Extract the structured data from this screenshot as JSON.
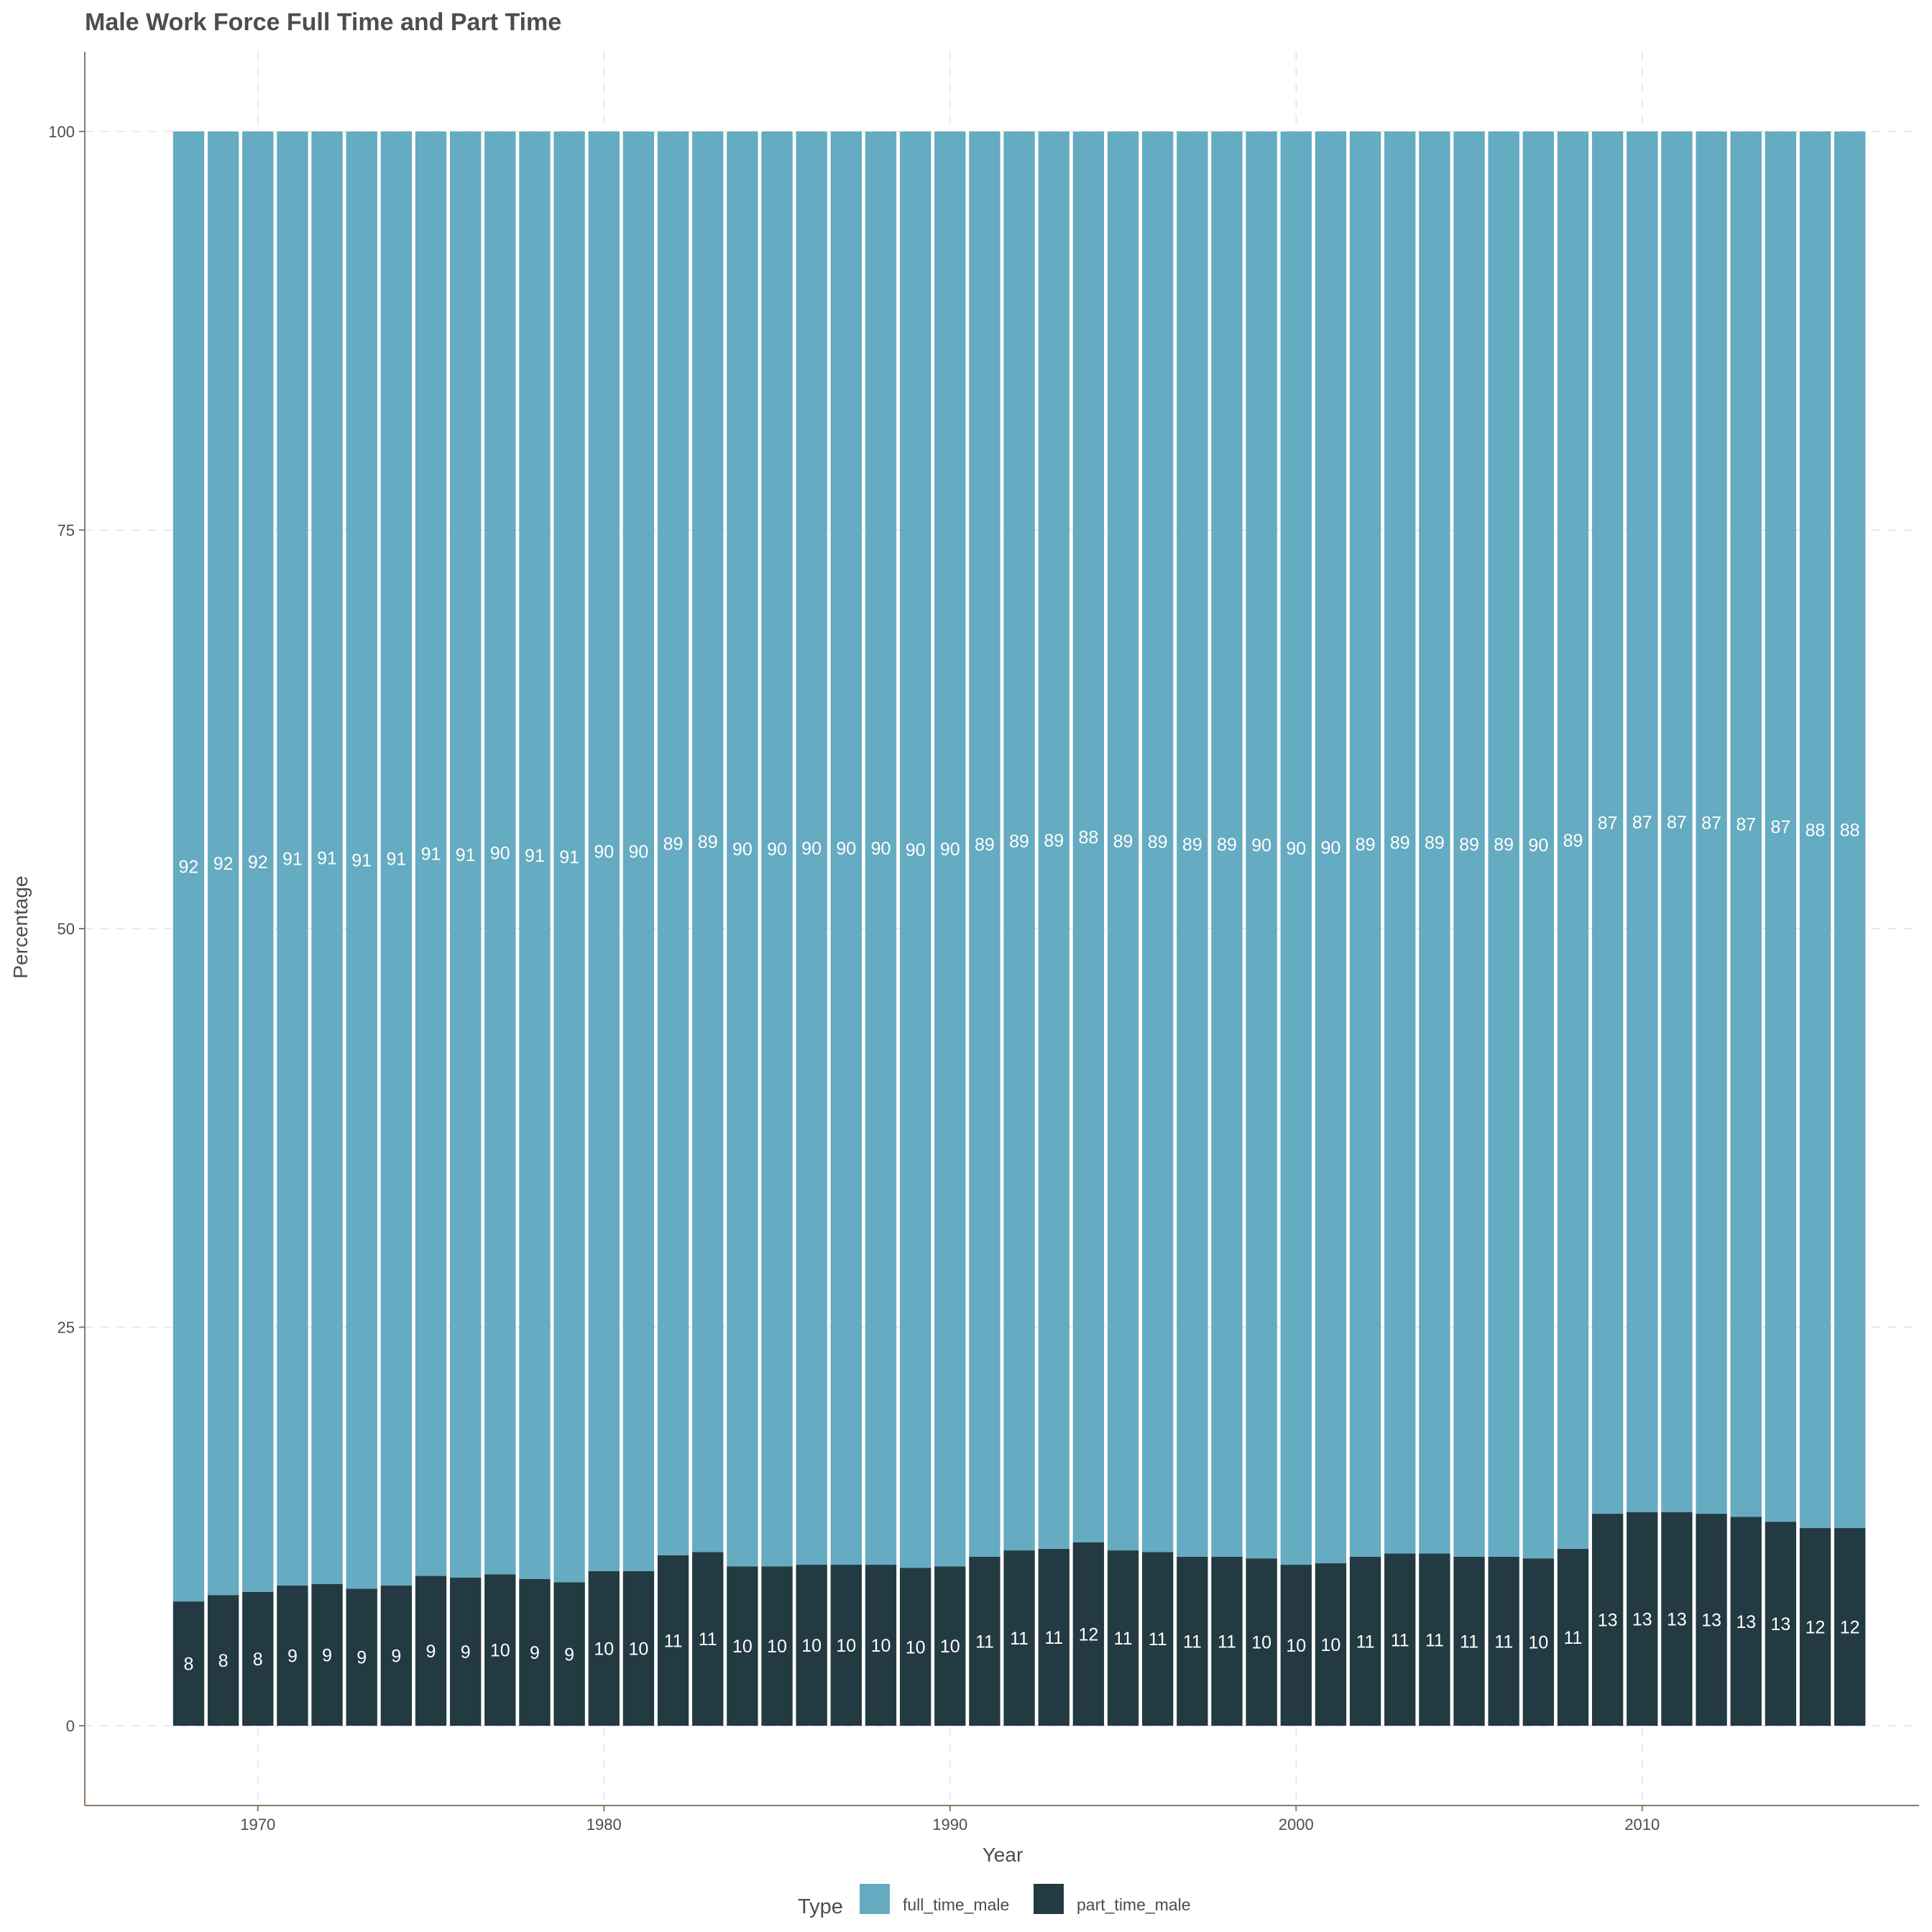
{
  "chart_data": {
    "type": "bar",
    "stacked": true,
    "title": "Male Work Force Full Time and Part Time",
    "xlabel": "Year",
    "ylabel": "Percentage",
    "x": [
      1968,
      1969,
      1970,
      1971,
      1972,
      1973,
      1974,
      1975,
      1976,
      1977,
      1978,
      1979,
      1980,
      1981,
      1982,
      1983,
      1984,
      1985,
      1986,
      1987,
      1988,
      1989,
      1990,
      1991,
      1992,
      1993,
      1994,
      1995,
      1996,
      1997,
      1998,
      1999,
      2000,
      2001,
      2002,
      2003,
      2004,
      2005,
      2006,
      2007,
      2008,
      2009,
      2010,
      2011,
      2012,
      2013,
      2014,
      2015,
      2016
    ],
    "xlim": [
      1965,
      2018
    ],
    "ylim": [
      -5,
      105
    ],
    "x_ticks": [
      1970,
      1980,
      1990,
      2000,
      2010
    ],
    "y_ticks": [
      0,
      25,
      50,
      75,
      100
    ],
    "grid": true,
    "legend": {
      "title": "Type",
      "position": "bottom"
    },
    "series": [
      {
        "name": "full_time_male",
        "color": "#65abc1",
        "values": [
          92.2,
          91.8,
          91.6,
          91.2,
          91.1,
          91.4,
          91.2,
          90.6,
          90.7,
          90.5,
          90.8,
          91.0,
          90.3,
          90.3,
          89.3,
          89.1,
          90.0,
          90.0,
          89.9,
          89.9,
          89.9,
          90.1,
          90.0,
          89.4,
          89.0,
          88.9,
          88.5,
          89.0,
          89.1,
          89.4,
          89.4,
          89.5,
          89.9,
          89.8,
          89.4,
          89.2,
          89.2,
          89.4,
          89.4,
          89.5,
          88.9,
          86.7,
          86.6,
          86.6,
          86.7,
          86.9,
          87.2,
          87.6,
          87.6
        ],
        "labels": [
          "92",
          "92",
          "92",
          "91",
          "91",
          "91",
          "91",
          "91",
          "91",
          "90",
          "91",
          "91",
          "90",
          "90",
          "89",
          "89",
          "90",
          "90",
          "90",
          "90",
          "90",
          "90",
          "90",
          "89",
          "89",
          "89",
          "88",
          "89",
          "89",
          "89",
          "89",
          "90",
          "90",
          "90",
          "89",
          "89",
          "89",
          "89",
          "89",
          "90",
          "89",
          "87",
          "87",
          "87",
          "87",
          "87",
          "87",
          "88",
          "88"
        ]
      },
      {
        "name": "part_time_male",
        "color": "#233a43",
        "values": [
          7.8,
          8.2,
          8.4,
          8.8,
          8.9,
          8.6,
          8.8,
          9.4,
          9.3,
          9.5,
          9.2,
          9.0,
          9.7,
          9.7,
          10.7,
          10.9,
          10.0,
          10.0,
          10.1,
          10.1,
          10.1,
          9.9,
          10.0,
          10.6,
          11.0,
          11.1,
          11.5,
          11.0,
          10.9,
          10.6,
          10.6,
          10.5,
          10.1,
          10.2,
          10.6,
          10.8,
          10.8,
          10.6,
          10.6,
          10.5,
          11.1,
          13.3,
          13.4,
          13.4,
          13.3,
          13.1,
          12.8,
          12.4,
          12.4
        ],
        "labels": [
          "8",
          "8",
          "8",
          "9",
          "9",
          "9",
          "9",
          "9",
          "9",
          "10",
          "9",
          "9",
          "10",
          "10",
          "11",
          "11",
          "10",
          "10",
          "10",
          "10",
          "10",
          "10",
          "10",
          "11",
          "11",
          "11",
          "12",
          "11",
          "11",
          "11",
          "11",
          "10",
          "10",
          "10",
          "11",
          "11",
          "11",
          "11",
          "11",
          "10",
          "11",
          "13",
          "13",
          "13",
          "13",
          "13",
          "13",
          "12",
          "12"
        ]
      }
    ]
  }
}
